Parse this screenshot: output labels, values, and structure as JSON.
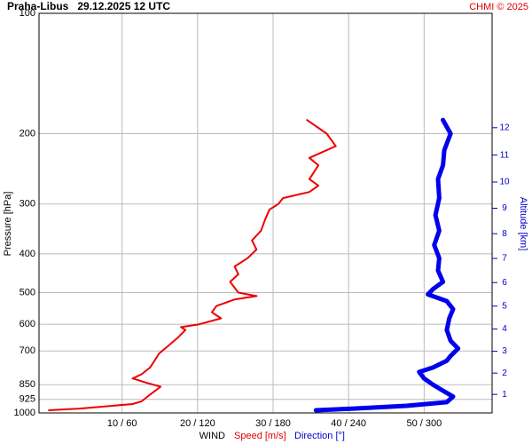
{
  "chart_data": {
    "type": "line",
    "title": "Praha-Libus   29.12.2025 12 UTC",
    "credit": "CHMI © 2025",
    "ylabel": "Pressure [hPa]",
    "y2label": "Altitude [km]",
    "xlabel": "WIND",
    "xlabel_speed": "Speed [m/s]",
    "xlabel_direction": "Direction [°]",
    "ylog": true,
    "ylim": [
      1000,
      100
    ],
    "yticks": [
      100,
      200,
      300,
      400,
      500,
      600,
      700,
      850,
      925,
      1000
    ],
    "y2ticks": [
      1,
      2,
      3,
      4,
      5,
      6,
      7,
      8,
      9,
      10,
      11,
      12
    ],
    "xlim": [
      -1,
      59
    ],
    "x2lim": [
      -6,
      354
    ],
    "xticks": [
      {
        "value": 10,
        "label": "10 / 60"
      },
      {
        "value": 20,
        "label": "20 / 120"
      },
      {
        "value": 30,
        "label": "30 / 180"
      },
      {
        "value": 40,
        "label": "40 / 240"
      },
      {
        "value": 50,
        "label": "50 / 300"
      }
    ],
    "grid": true,
    "series": [
      {
        "name": "Speed",
        "color": "#ee0000",
        "axis": "x",
        "pressure": [
          985,
          975,
          950,
          935,
          900,
          860,
          840,
          820,
          800,
          770,
          740,
          710,
          680,
          650,
          620,
          610,
          600,
          580,
          560,
          540,
          520,
          510,
          500,
          470,
          450,
          430,
          410,
          390,
          370,
          350,
          330,
          310,
          300,
          290,
          280,
          270,
          260,
          250,
          240,
          230,
          215,
          200,
          185
        ],
        "values": [
          0.3,
          4.4,
          11.4,
          12.6,
          13.7,
          15.1,
          13.2,
          11.4,
          12.6,
          13.7,
          14.3,
          14.9,
          16.1,
          17.3,
          18.4,
          17.8,
          20.2,
          23.1,
          21.9,
          22.5,
          24.9,
          27.8,
          25.4,
          24.3,
          25.4,
          24.9,
          26.6,
          27.8,
          27.2,
          28.4,
          28.9,
          29.5,
          30.7,
          31.3,
          34.8,
          36.0,
          34.8,
          35.4,
          36.0,
          34.8,
          38.3,
          37.1,
          34.5
        ]
      },
      {
        "name": "Direction",
        "color": "#0000ee",
        "axis": "x2",
        "pressure": [
          985,
          975,
          960,
          940,
          910,
          880,
          850,
          820,
          790,
          770,
          740,
          720,
          690,
          660,
          620,
          580,
          550,
          525,
          505,
          490,
          470,
          440,
          410,
          380,
          350,
          320,
          290,
          260,
          240,
          220,
          200,
          185
        ],
        "values": [
          214,
          244,
          286,
          318,
          323,
          315,
          307,
          300,
          296,
          307,
          318,
          321,
          327,
          321,
          318,
          320,
          323,
          318,
          303,
          307,
          315,
          311,
          312,
          308,
          312,
          309,
          312,
          311,
          315,
          316,
          321,
          315
        ]
      }
    ]
  }
}
